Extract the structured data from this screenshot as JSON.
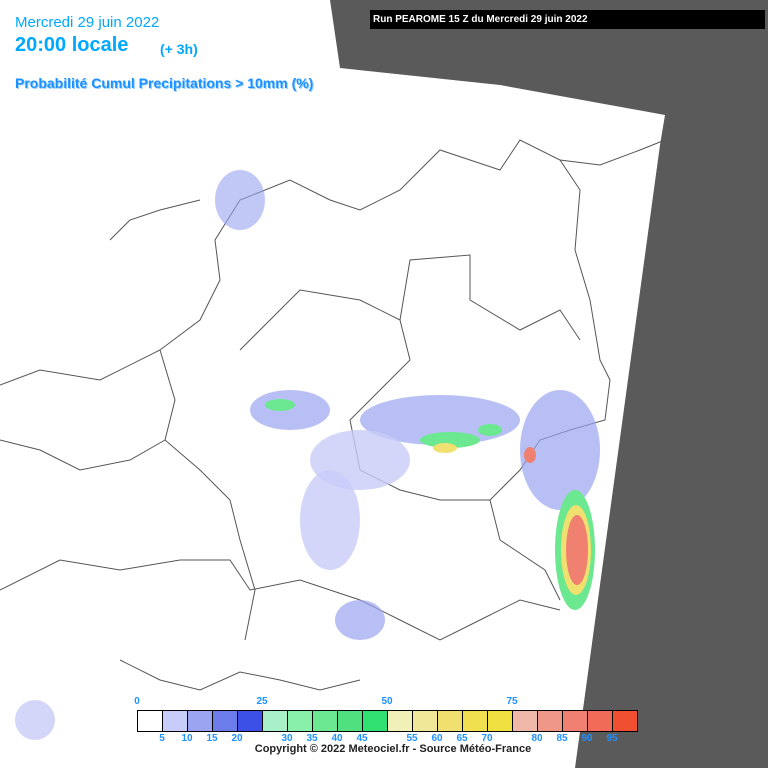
{
  "header": {
    "date": "Mercredi 29 juin 2022",
    "time": "20:00 locale",
    "lead": "(+ 3h)",
    "run": "Run PEAROME 15 Z du Mercredi 29 juin 2022",
    "title": "Probabilité Cumul Precipitations > 10mm (%)"
  },
  "legend": {
    "colors": [
      "#ffffff",
      "#c8ccf8",
      "#9aa4f0",
      "#6c7ce8",
      "#3c50e8",
      "#a8f0c8",
      "#88f0a8",
      "#6ce890",
      "#50e080",
      "#30e070",
      "#f0f0b8",
      "#f0e898",
      "#f0e070",
      "#f0e050",
      "#f0e040",
      "#f0b8a8",
      "#f09888",
      "#f08070",
      "#f06c58",
      "#f05030"
    ],
    "scale_top": [
      0,
      25,
      50,
      75
    ],
    "scale_bottom": [
      5,
      10,
      15,
      20,
      30,
      35,
      40,
      45,
      55,
      60,
      65,
      70,
      80,
      85,
      90,
      95
    ]
  },
  "footer": {
    "copyright": "Copyright © 2022 Meteociel.fr - Source Météo-France"
  }
}
